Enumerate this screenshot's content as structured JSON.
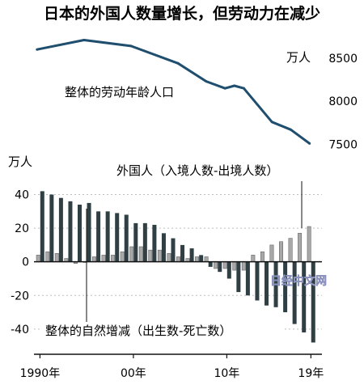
{
  "title": "日本的外国人数量增长，但劳动力在减少",
  "watermark": "日经中文网",
  "colors": {
    "line": "#1f4e6e",
    "bar_natural": "#2f3f44",
    "bar_foreign": "#a8a8a8",
    "text": "#111111"
  },
  "chart_data": [
    {
      "type": "line",
      "series_label": "整体的劳动年龄人口",
      "unit_label": "万人",
      "x": [
        1990,
        1995,
        2000,
        2005,
        2008,
        2010,
        2011,
        2012,
        2015,
        2017,
        2019
      ],
      "y": [
        8600,
        8710,
        8640,
        8440,
        8230,
        8150,
        8180,
        8150,
        7760,
        7670,
        7510
      ],
      "yticks": [
        7500,
        8000,
        8500
      ],
      "ylim": [
        7420,
        8780
      ],
      "xlim": [
        1989.5,
        2019.8
      ]
    },
    {
      "type": "bar",
      "unit_label": "万人",
      "categories": [
        "1990年",
        "1991",
        "1992",
        "1993",
        "1994",
        "1995",
        "1996",
        "1997",
        "1998",
        "1999",
        "00年",
        "2001",
        "2002",
        "2003",
        "2004",
        "2005",
        "2006",
        "2007",
        "2008",
        "2009",
        "10年",
        "2011",
        "2012",
        "2013",
        "2014",
        "2015",
        "2016",
        "2017",
        "2018",
        "19年"
      ],
      "series": [
        {
          "name": "整体的自然增减（出生数-死亡数）",
          "values": [
            42,
            40,
            38,
            36,
            34,
            35,
            30,
            30,
            29,
            28,
            23,
            23,
            22,
            17,
            14,
            10,
            8,
            4,
            -3,
            -6,
            -10,
            -18,
            -20,
            -23,
            -26,
            -27,
            -30,
            -37,
            -42,
            -48
          ]
        },
        {
          "name": "外国人（入境人数-出境人数）",
          "values": [
            4,
            6,
            5,
            2,
            -1,
            0,
            3,
            4,
            4,
            6,
            9,
            9,
            7,
            7,
            5,
            3,
            2,
            3,
            3,
            -4,
            -4,
            -5,
            -5,
            4,
            6,
            10,
            12,
            14,
            17,
            21
          ]
        }
      ],
      "yticks": [
        -40,
        -20,
        0,
        20,
        40
      ],
      "ylim": [
        -55,
        47
      ],
      "xticks": [
        "1990年",
        "00年",
        "10年",
        "19年"
      ]
    }
  ]
}
